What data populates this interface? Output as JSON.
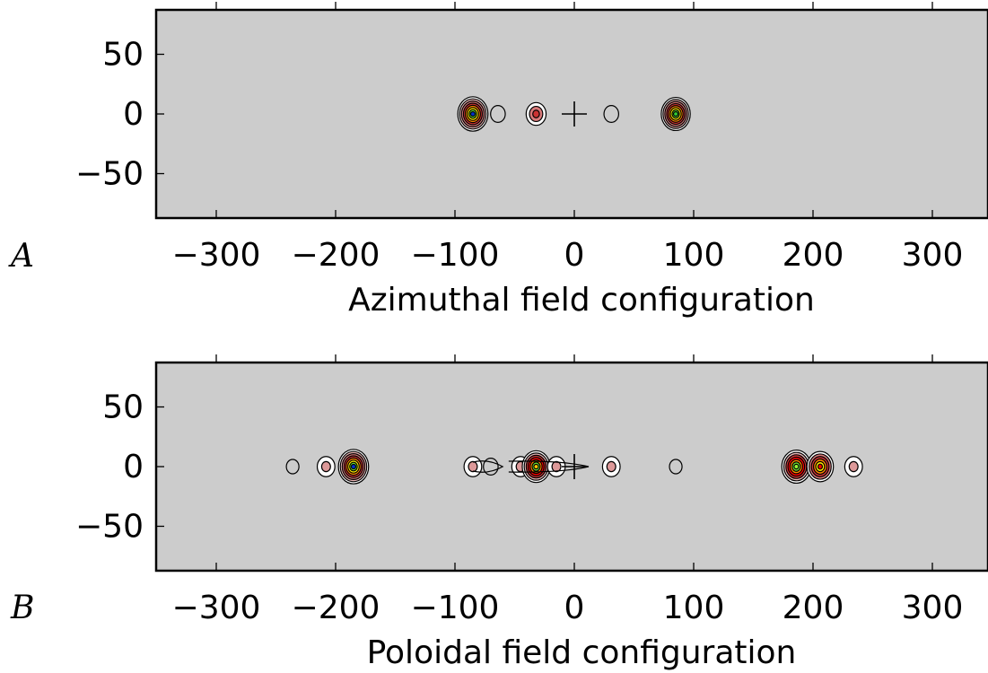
{
  "chart_data": [
    {
      "type": "contour",
      "panel_letter": "A",
      "xlabel": "Azimuthal field configuration",
      "ylabel": "",
      "xlim": [
        -350,
        345
      ],
      "ylim": [
        -88,
        88
      ],
      "xticks": [
        -300,
        -200,
        -100,
        0,
        100,
        200,
        300
      ],
      "xtick_labels": [
        "−300",
        "−200",
        "−100",
        "0",
        "100",
        "200",
        "300"
      ],
      "yticks": [
        50,
        0,
        -50
      ],
      "ytick_labels": [
        "50",
        "0",
        "−50"
      ],
      "background": "#cccccc",
      "center_marker": {
        "x": 0,
        "y": 0,
        "symbol": "+"
      },
      "sources": [
        {
          "x": -85,
          "y": 0,
          "peak": 1.0,
          "core_color": "#0033cc",
          "levels": 8
        },
        {
          "x": -64,
          "y": 0,
          "peak": 0.1,
          "core_color": "#cccccc",
          "levels": 1
        },
        {
          "x": -32,
          "y": 0,
          "peak": 0.3,
          "core_color": "#cc3333",
          "levels": 3
        },
        {
          "x": 31,
          "y": 0,
          "peak": 0.1,
          "core_color": "#cccccc",
          "levels": 1
        },
        {
          "x": 85,
          "y": 0,
          "peak": 0.9,
          "core_color": "#33cc33",
          "levels": 8
        }
      ]
    },
    {
      "type": "contour",
      "panel_letter": "B",
      "xlabel": "Poloidal field configuration",
      "ylabel": "",
      "xlim": [
        -350,
        345
      ],
      "ylim": [
        -88,
        88
      ],
      "xticks": [
        -300,
        -200,
        -100,
        0,
        100,
        200,
        300
      ],
      "xtick_labels": [
        "−300",
        "−200",
        "−100",
        "0",
        "100",
        "200",
        "300"
      ],
      "yticks": [
        50,
        0,
        -50
      ],
      "ytick_labels": [
        "50",
        "0",
        "−50"
      ],
      "background": "#cccccc",
      "center_marker": {
        "x": 0,
        "y": 0,
        "symbol": "+"
      },
      "sources": [
        {
          "x": -236,
          "y": 0,
          "peak": 0.05,
          "core_color": "#cccccc",
          "levels": 1
        },
        {
          "x": -208,
          "y": 0,
          "peak": 0.2,
          "core_color": "#dd9999",
          "levels": 2
        },
        {
          "x": -185,
          "y": 0,
          "peak": 1.0,
          "core_color": "#0033cc",
          "levels": 8
        },
        {
          "x": -85,
          "y": 0,
          "peak": 0.2,
          "core_color": "#dd9999",
          "levels": 2
        },
        {
          "x": -70,
          "y": 0,
          "peak": 0.1,
          "core_color": "#cccccc",
          "levels": 1
        },
        {
          "x": -45,
          "y": 0,
          "peak": 0.2,
          "core_color": "#dd9999",
          "levels": 2
        },
        {
          "x": -32,
          "y": 0,
          "peak": 0.8,
          "core_color": "#ffcc00",
          "levels": 7
        },
        {
          "x": -15,
          "y": 0,
          "peak": 0.2,
          "core_color": "#dd9999",
          "levels": 2
        },
        {
          "x": 31,
          "y": 0,
          "peak": 0.2,
          "core_color": "#dd9999",
          "levels": 2
        },
        {
          "x": 85,
          "y": 0,
          "peak": 0.05,
          "core_color": "#cccccc",
          "levels": 1
        },
        {
          "x": 186,
          "y": 0,
          "peak": 0.9,
          "core_color": "#99ff33",
          "levels": 7
        },
        {
          "x": 206,
          "y": 0,
          "peak": 0.7,
          "core_color": "#ee0000",
          "levels": 6
        },
        {
          "x": 234,
          "y": 0,
          "peak": 0.2,
          "core_color": "#dd9999",
          "levels": 2
        }
      ]
    }
  ]
}
